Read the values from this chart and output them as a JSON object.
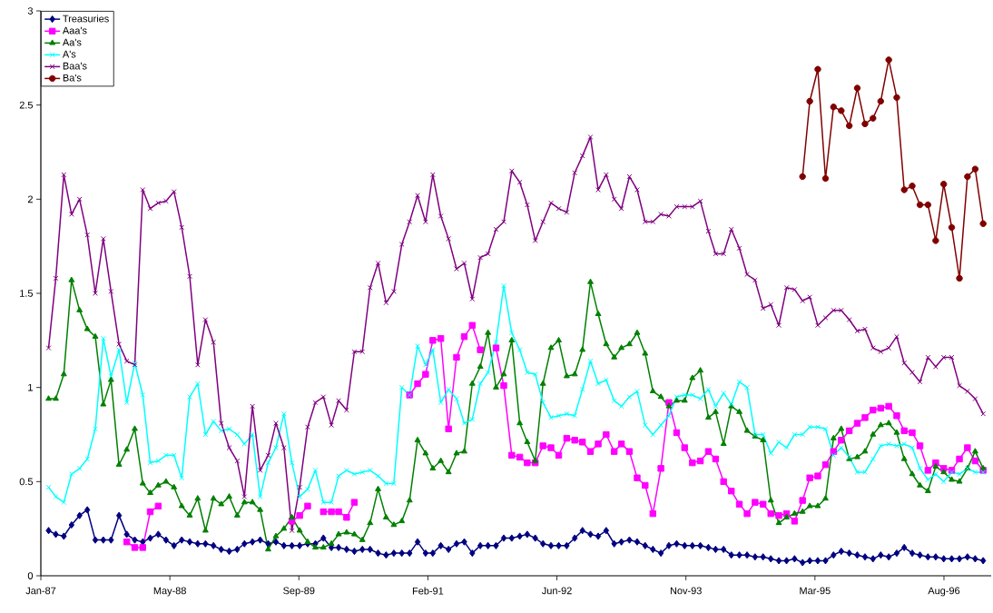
{
  "chart_data": {
    "type": "line",
    "x": [
      "1987-01-31",
      "1987-02-28",
      "1987-03-31",
      "1987-04-30",
      "1987-05-31",
      "1987-06-30",
      "1987-07-31",
      "1987-08-31",
      "1987-09-30",
      "1987-10-31",
      "1987-11-30",
      "1987-12-31",
      "1988-01-31",
      "1988-02-29",
      "1988-03-31",
      "1988-04-30",
      "1988-05-31",
      "1988-06-30",
      "1988-07-31",
      "1988-08-31",
      "1988-09-30",
      "1988-10-31",
      "1988-11-30",
      "1988-12-31",
      "1989-01-31",
      "1989-02-28",
      "1989-03-31",
      "1989-04-30",
      "1989-05-31",
      "1989-06-30",
      "1989-07-31",
      "1989-08-31",
      "1989-09-30",
      "1989-10-31",
      "1989-11-30",
      "1989-12-31",
      "1990-01-31",
      "1990-02-28",
      "1990-03-31",
      "1990-04-30",
      "1990-05-31",
      "1990-06-30",
      "1990-07-31",
      "1990-08-31",
      "1990-09-30",
      "1990-10-31",
      "1990-11-30",
      "1990-12-31",
      "1991-01-31",
      "1991-02-28",
      "1991-03-31",
      "1991-04-30",
      "1991-05-31",
      "1991-06-30",
      "1991-07-31",
      "1991-08-31",
      "1991-09-30",
      "1991-10-31",
      "1991-11-30",
      "1991-12-31",
      "1992-01-31",
      "1992-02-29",
      "1992-03-31",
      "1992-04-30",
      "1992-05-31",
      "1992-06-30",
      "1992-07-31",
      "1992-08-31",
      "1992-09-30",
      "1992-10-31",
      "1992-11-30",
      "1992-12-31",
      "1993-01-31",
      "1993-02-28",
      "1993-03-31",
      "1993-04-30",
      "1993-05-31",
      "1993-06-30",
      "1993-07-31",
      "1993-08-31",
      "1993-09-30",
      "1993-10-31",
      "1993-11-30",
      "1993-12-31",
      "1994-01-31",
      "1994-02-28",
      "1994-03-31",
      "1994-04-30",
      "1994-05-31",
      "1994-06-30",
      "1994-07-31",
      "1994-08-31",
      "1994-09-30",
      "1994-10-31",
      "1994-11-30",
      "1994-12-31",
      "1995-01-31",
      "1995-02-28",
      "1995-03-31",
      "1995-04-30",
      "1995-05-31",
      "1995-06-30",
      "1995-07-31",
      "1995-08-31",
      "1995-09-30",
      "1995-10-31",
      "1995-11-30",
      "1995-12-31",
      "1996-01-31",
      "1996-02-29",
      "1996-03-31",
      "1996-04-30",
      "1996-05-31",
      "1996-06-30",
      "1996-07-31",
      "1996-08-31",
      "1996-09-30",
      "1996-10-31",
      "1996-11-30",
      "1996-12-31"
    ],
    "series": [
      {
        "name": "Treasuries",
        "color": "#000080",
        "marker": "diamond",
        "values": [
          0.24,
          0.22,
          0.21,
          0.27,
          0.32,
          0.35,
          0.19,
          0.19,
          0.19,
          0.32,
          0.22,
          0.19,
          0.18,
          0.2,
          0.22,
          0.19,
          0.16,
          0.19,
          0.18,
          0.17,
          0.17,
          0.16,
          0.14,
          0.13,
          0.14,
          0.17,
          0.18,
          0.19,
          0.17,
          0.18,
          0.16,
          0.16,
          0.16,
          0.17,
          0.17,
          0.2,
          0.15,
          0.15,
          0.14,
          0.13,
          0.14,
          0.14,
          0.12,
          0.11,
          0.12,
          0.12,
          0.12,
          0.18,
          0.12,
          0.12,
          0.16,
          0.14,
          0.17,
          0.18,
          0.12,
          0.16,
          0.16,
          0.16,
          0.2,
          0.2,
          0.21,
          0.22,
          0.2,
          0.17,
          0.16,
          0.16,
          0.16,
          0.2,
          0.24,
          0.22,
          0.21,
          0.24,
          0.17,
          0.18,
          0.19,
          0.18,
          0.16,
          0.14,
          0.12,
          0.16,
          0.17,
          0.16,
          0.16,
          0.16,
          0.15,
          0.14,
          0.14,
          0.11,
          0.11,
          0.11,
          0.1,
          0.1,
          0.09,
          0.08,
          0.08,
          0.09,
          0.07,
          0.08,
          0.08,
          0.08,
          0.11,
          0.13,
          0.12,
          0.11,
          0.1,
          0.09,
          0.11,
          0.1,
          0.12,
          0.15,
          0.12,
          0.11,
          0.1,
          0.1,
          0.09,
          0.09,
          0.09,
          0.1,
          0.09,
          0.08
        ]
      },
      {
        "name": "Aaa's",
        "color": "#ff00ff",
        "marker": "square",
        "values": [
          null,
          null,
          null,
          null,
          null,
          null,
          null,
          null,
          null,
          null,
          0.18,
          0.15,
          0.15,
          0.34,
          0.37,
          null,
          null,
          null,
          null,
          null,
          null,
          null,
          null,
          null,
          null,
          null,
          null,
          null,
          null,
          null,
          null,
          0.29,
          0.32,
          0.37,
          null,
          0.34,
          0.34,
          0.34,
          0.31,
          0.39,
          null,
          null,
          null,
          null,
          null,
          null,
          0.96,
          1.02,
          1.07,
          1.25,
          1.26,
          0.78,
          1.16,
          1.27,
          1.33,
          1.2,
          null,
          1.21,
          1.01,
          0.64,
          0.63,
          0.6,
          0.6,
          0.69,
          0.68,
          0.64,
          0.73,
          0.72,
          0.71,
          0.66,
          0.7,
          0.75,
          0.66,
          0.7,
          0.66,
          0.52,
          0.48,
          0.33,
          0.57,
          0.92,
          0.76,
          0.68,
          0.6,
          0.61,
          0.66,
          0.62,
          0.5,
          0.45,
          0.38,
          0.33,
          0.39,
          0.38,
          0.33,
          0.32,
          0.33,
          0.29,
          0.4,
          0.52,
          0.53,
          0.59,
          0.66,
          0.72,
          0.77,
          0.81,
          0.84,
          0.88,
          0.89,
          0.9,
          0.85,
          0.77,
          0.76,
          0.69,
          0.56,
          0.6,
          0.57,
          0.56,
          0.62,
          0.68,
          0.61,
          0.56
        ]
      },
      {
        "name": "Aa's",
        "color": "#008000",
        "marker": "triangle",
        "values": [
          0.94,
          0.94,
          1.07,
          1.57,
          1.41,
          1.31,
          1.27,
          0.91,
          1.04,
          0.59,
          0.67,
          0.78,
          0.49,
          0.44,
          0.48,
          0.5,
          0.47,
          0.37,
          0.32,
          0.41,
          0.24,
          0.41,
          0.38,
          0.42,
          0.32,
          0.39,
          0.39,
          0.35,
          0.14,
          0.21,
          0.25,
          0.31,
          0.24,
          0.18,
          0.15,
          0.15,
          0.17,
          0.22,
          0.23,
          0.22,
          0.19,
          0.28,
          0.46,
          0.31,
          0.27,
          0.29,
          0.4,
          0.72,
          0.65,
          0.57,
          0.61,
          0.55,
          0.65,
          0.66,
          1.02,
          1.11,
          1.29,
          1.0,
          1.07,
          1.25,
          0.81,
          0.71,
          0.61,
          1.02,
          1.21,
          1.25,
          1.06,
          1.07,
          1.2,
          1.56,
          1.39,
          1.23,
          1.16,
          1.21,
          1.23,
          1.29,
          1.18,
          0.98,
          0.95,
          0.9,
          0.93,
          0.93,
          1.05,
          1.09,
          0.84,
          0.87,
          0.7,
          0.9,
          0.87,
          0.77,
          0.74,
          0.72,
          0.4,
          0.28,
          0.31,
          0.33,
          0.34,
          0.37,
          0.37,
          0.41,
          0.73,
          0.78,
          0.62,
          0.63,
          0.66,
          0.75,
          0.8,
          0.81,
          0.76,
          0.62,
          0.54,
          0.48,
          0.45,
          0.58,
          0.55,
          0.51,
          0.5,
          0.57,
          0.66,
          0.57
        ]
      },
      {
        "name": "A's",
        "color": "#00ffff",
        "marker": "cross",
        "values": [
          0.47,
          0.42,
          0.39,
          0.54,
          0.57,
          0.62,
          0.78,
          1.26,
          1.06,
          1.2,
          0.92,
          1.13,
          0.96,
          0.6,
          0.61,
          0.64,
          0.64,
          0.52,
          0.95,
          1.02,
          0.75,
          0.82,
          0.77,
          0.78,
          0.75,
          0.7,
          0.75,
          0.42,
          0.6,
          0.68,
          0.86,
          0.6,
          0.42,
          0.46,
          0.56,
          0.39,
          0.39,
          0.53,
          0.56,
          0.54,
          0.55,
          0.56,
          0.53,
          0.49,
          0.49,
          1.0,
          0.96,
          1.22,
          1.12,
          1.2,
          0.92,
          0.99,
          0.94,
          0.81,
          0.83,
          1.02,
          1.08,
          1.24,
          1.54,
          1.29,
          1.2,
          1.08,
          1.07,
          0.92,
          0.84,
          0.85,
          0.86,
          0.85,
          0.99,
          1.14,
          1.02,
          1.04,
          0.93,
          0.9,
          0.95,
          0.98,
          0.8,
          0.75,
          0.8,
          0.85,
          0.95,
          0.96,
          0.96,
          0.94,
          0.99,
          0.9,
          0.97,
          0.91,
          1.03,
          1.0,
          0.75,
          0.75,
          0.65,
          0.71,
          0.68,
          0.75,
          0.75,
          0.79,
          0.79,
          0.78,
          0.64,
          0.68,
          0.63,
          0.55,
          0.55,
          0.62,
          0.69,
          0.7,
          0.69,
          0.7,
          0.68,
          0.57,
          0.51,
          0.54,
          0.5,
          0.55,
          0.54,
          0.57,
          0.55,
          0.55
        ]
      },
      {
        "name": "Baa's",
        "color": "#800080",
        "marker": "cross",
        "values": [
          1.21,
          1.58,
          2.13,
          1.92,
          2.0,
          1.81,
          1.5,
          1.79,
          1.51,
          1.23,
          1.14,
          1.12,
          2.05,
          1.95,
          1.98,
          1.99,
          2.04,
          1.85,
          1.59,
          1.12,
          1.36,
          1.24,
          0.81,
          0.68,
          0.61,
          0.42,
          0.9,
          0.56,
          0.64,
          0.81,
          0.68,
          0.24,
          0.47,
          0.79,
          0.92,
          0.95,
          0.8,
          0.93,
          0.88,
          1.19,
          1.19,
          1.53,
          1.66,
          1.45,
          1.51,
          1.76,
          1.88,
          2.02,
          1.88,
          2.13,
          1.91,
          1.79,
          1.63,
          1.66,
          1.47,
          1.69,
          1.71,
          1.84,
          1.88,
          2.15,
          2.09,
          1.97,
          1.78,
          1.88,
          1.98,
          1.95,
          1.93,
          2.14,
          2.23,
          2.33,
          2.05,
          2.13,
          2.0,
          1.95,
          2.12,
          2.05,
          1.88,
          1.88,
          1.92,
          1.91,
          1.96,
          1.96,
          1.96,
          1.99,
          1.83,
          1.71,
          1.71,
          1.84,
          1.74,
          1.6,
          1.57,
          1.42,
          1.44,
          1.33,
          1.53,
          1.52,
          1.46,
          1.48,
          1.33,
          1.37,
          1.41,
          1.41,
          1.36,
          1.3,
          1.31,
          1.21,
          1.19,
          1.21,
          1.27,
          1.13,
          1.08,
          1.03,
          1.16,
          1.11,
          1.16,
          1.16,
          1.01,
          0.98,
          0.94,
          0.86
        ]
      },
      {
        "name": "Ba's",
        "color": "#800000",
        "marker": "circle",
        "x": [
          "1995-01-31",
          "1995-02-28",
          "1995-03-31",
          "1995-04-30",
          "1995-05-31",
          "1995-06-30",
          "1995-07-31",
          "1995-08-31",
          "1995-09-30",
          "1995-10-31",
          "1995-11-30",
          "1995-12-31",
          "1996-01-31",
          "1996-02-29",
          "1996-03-31",
          "1996-04-30",
          "1996-05-31",
          "1996-06-30",
          "1996-07-31",
          "1996-08-31",
          "1996-09-30",
          "1996-10-31",
          "1996-11-30",
          "1996-12-31"
        ],
        "values": [
          2.12,
          2.52,
          2.69,
          2.11,
          2.49,
          2.47,
          2.39,
          2.59,
          2.4,
          2.43,
          2.52,
          2.74,
          2.54,
          2.05,
          2.07,
          1.97,
          1.97,
          1.78,
          2.08,
          1.85,
          1.58,
          2.12,
          2.16,
          1.87
        ]
      }
    ],
    "xlim": [
      "1987-01-01",
      "1997-01-31"
    ],
    "xticks": [
      {
        "value": "1987-01-01",
        "label": "Jan-87"
      },
      {
        "value": "1988-05-15",
        "label": "May-88"
      },
      {
        "value": "1989-09-27",
        "label": "Sep-89"
      },
      {
        "value": "1991-02-09",
        "label": "Feb-91"
      },
      {
        "value": "1992-06-23",
        "label": "Jun-92"
      },
      {
        "value": "1993-11-05",
        "label": "Nov-93"
      },
      {
        "value": "1995-03-20",
        "label": "Mar-95"
      },
      {
        "value": "1996-08-01",
        "label": "Aug-96"
      }
    ],
    "ylim": [
      0,
      3
    ],
    "yticks": [
      0,
      0.5,
      1,
      1.5,
      2,
      2.5,
      3
    ],
    "legend": "top left"
  }
}
